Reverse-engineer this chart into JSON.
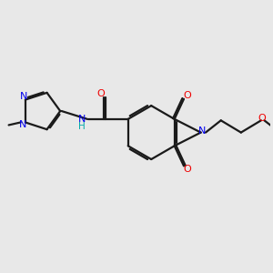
{
  "bg_color": "#e8e8e8",
  "bond_color": "#1a1a1a",
  "N_color": "#0000ee",
  "O_color": "#ee0000",
  "H_color": "#00aaaa",
  "line_width": 1.6,
  "figsize": [
    3.0,
    3.0
  ],
  "dpi": 100,
  "xlim": [
    0,
    10
  ],
  "ylim": [
    0,
    10
  ]
}
